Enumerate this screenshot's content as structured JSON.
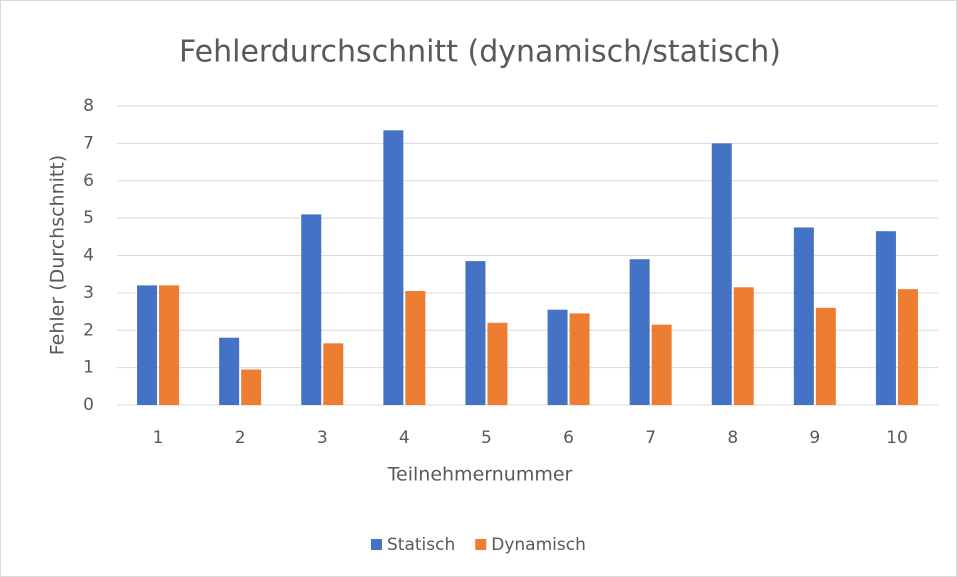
{
  "chart_data": {
    "type": "bar",
    "title": "Fehlerdurchschnitt (dynamisch/statisch)",
    "x_label": "Teilnehmernummer",
    "y_label": "Fehler (Durchschnitt)",
    "categories": [
      "1",
      "2",
      "3",
      "4",
      "5",
      "6",
      "7",
      "8",
      "9",
      "10"
    ],
    "series": [
      {
        "name": "Statisch",
        "color": "#4472c4",
        "values": [
          3.2,
          1.8,
          5.1,
          7.35,
          3.85,
          2.55,
          3.9,
          7.0,
          4.75,
          4.65
        ]
      },
      {
        "name": "Dynamisch",
        "color": "#ed7d31",
        "values": [
          3.2,
          0.95,
          1.65,
          3.05,
          2.2,
          2.45,
          2.15,
          3.15,
          2.6,
          3.1
        ]
      }
    ],
    "ylim": [
      0,
      8
    ],
    "yticks": [
      0,
      1,
      2,
      3,
      4,
      5,
      6,
      7,
      8
    ],
    "grid": true,
    "legend": "bottom"
  }
}
